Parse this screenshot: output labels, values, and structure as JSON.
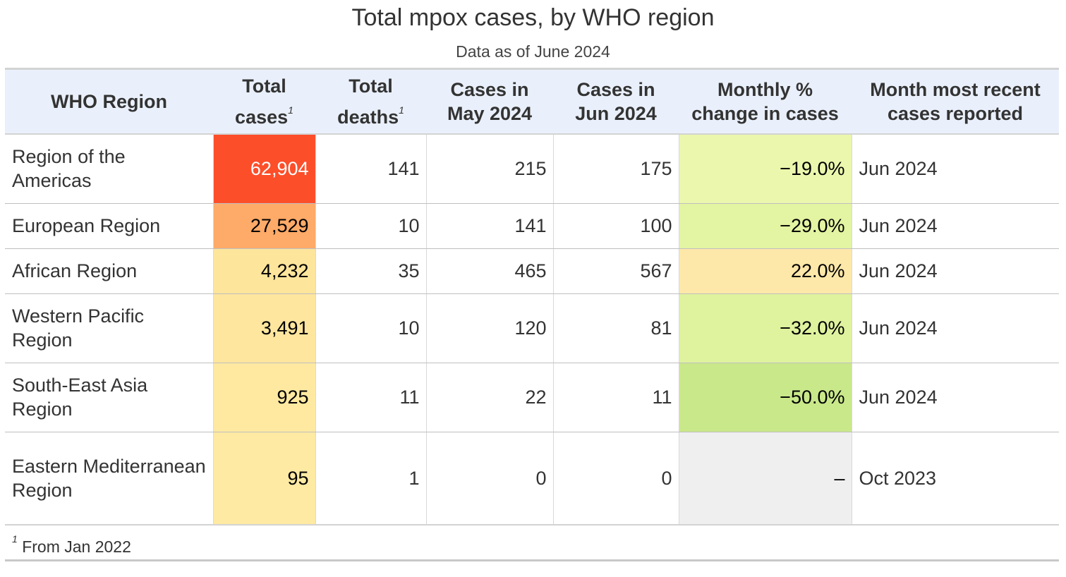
{
  "chart_data": {
    "type": "table",
    "title": "Total mpox cases, by WHO region",
    "subtitle": "Data as of June 2024",
    "headers": {
      "region": "WHO Region",
      "total_cases": "Total cases",
      "total_deaths": "Total deaths",
      "cases_may": "Cases in May 2024",
      "cases_jun": "Cases in Jun 2024",
      "pct_change": "Monthly % change in cases",
      "recent_month": "Month most recent cases reported"
    },
    "footnote_marker": "1",
    "rows": [
      {
        "region": "Region of the Americas",
        "total_cases": "62,904",
        "total_deaths": "141",
        "cases_may": "215",
        "cases_jun": "175",
        "pct_change": "−19.0%",
        "recent_month": "Jun 2024",
        "cases_color": "#fd4e2a",
        "cases_text_color": "#ffffff",
        "pct_color": "#ebf7ad"
      },
      {
        "region": "European Region",
        "total_cases": "27,529",
        "total_deaths": "10",
        "cases_may": "141",
        "cases_jun": "100",
        "pct_change": "−29.0%",
        "recent_month": "Jun 2024",
        "cases_color": "#feaa68",
        "cases_text_color": "#000000",
        "pct_color": "#e3f4a2"
      },
      {
        "region": "African Region",
        "total_cases": "4,232",
        "total_deaths": "35",
        "cases_may": "465",
        "cases_jun": "567",
        "pct_change": "22.0%",
        "recent_month": "Jun 2024",
        "cases_color": "#fee59c",
        "cases_text_color": "#000000",
        "pct_color": "#fee8a9"
      },
      {
        "region": "Western Pacific Region",
        "total_cases": "3,491",
        "total_deaths": "10",
        "cases_may": "120",
        "cases_jun": "81",
        "pct_change": "−32.0%",
        "recent_month": "Jun 2024",
        "cases_color": "#fee69e",
        "cases_text_color": "#000000",
        "pct_color": "#dff29e"
      },
      {
        "region": "South-East Asia Region",
        "total_cases": "925",
        "total_deaths": "11",
        "cases_may": "22",
        "cases_jun": "11",
        "pct_change": "−50.0%",
        "recent_month": "Jun 2024",
        "cases_color": "#ffe9a1",
        "cases_text_color": "#000000",
        "pct_color": "#c9e88a"
      },
      {
        "region": "Eastern Mediterranean Region",
        "total_cases": "95",
        "total_deaths": "1",
        "cases_may": "0",
        "cases_jun": "0",
        "pct_change": "–",
        "recent_month": "Oct 2023",
        "cases_color": "#ffeaa3",
        "cases_text_color": "#000000",
        "pct_color": "#efefef"
      }
    ],
    "footnote": "From Jan 2022"
  }
}
